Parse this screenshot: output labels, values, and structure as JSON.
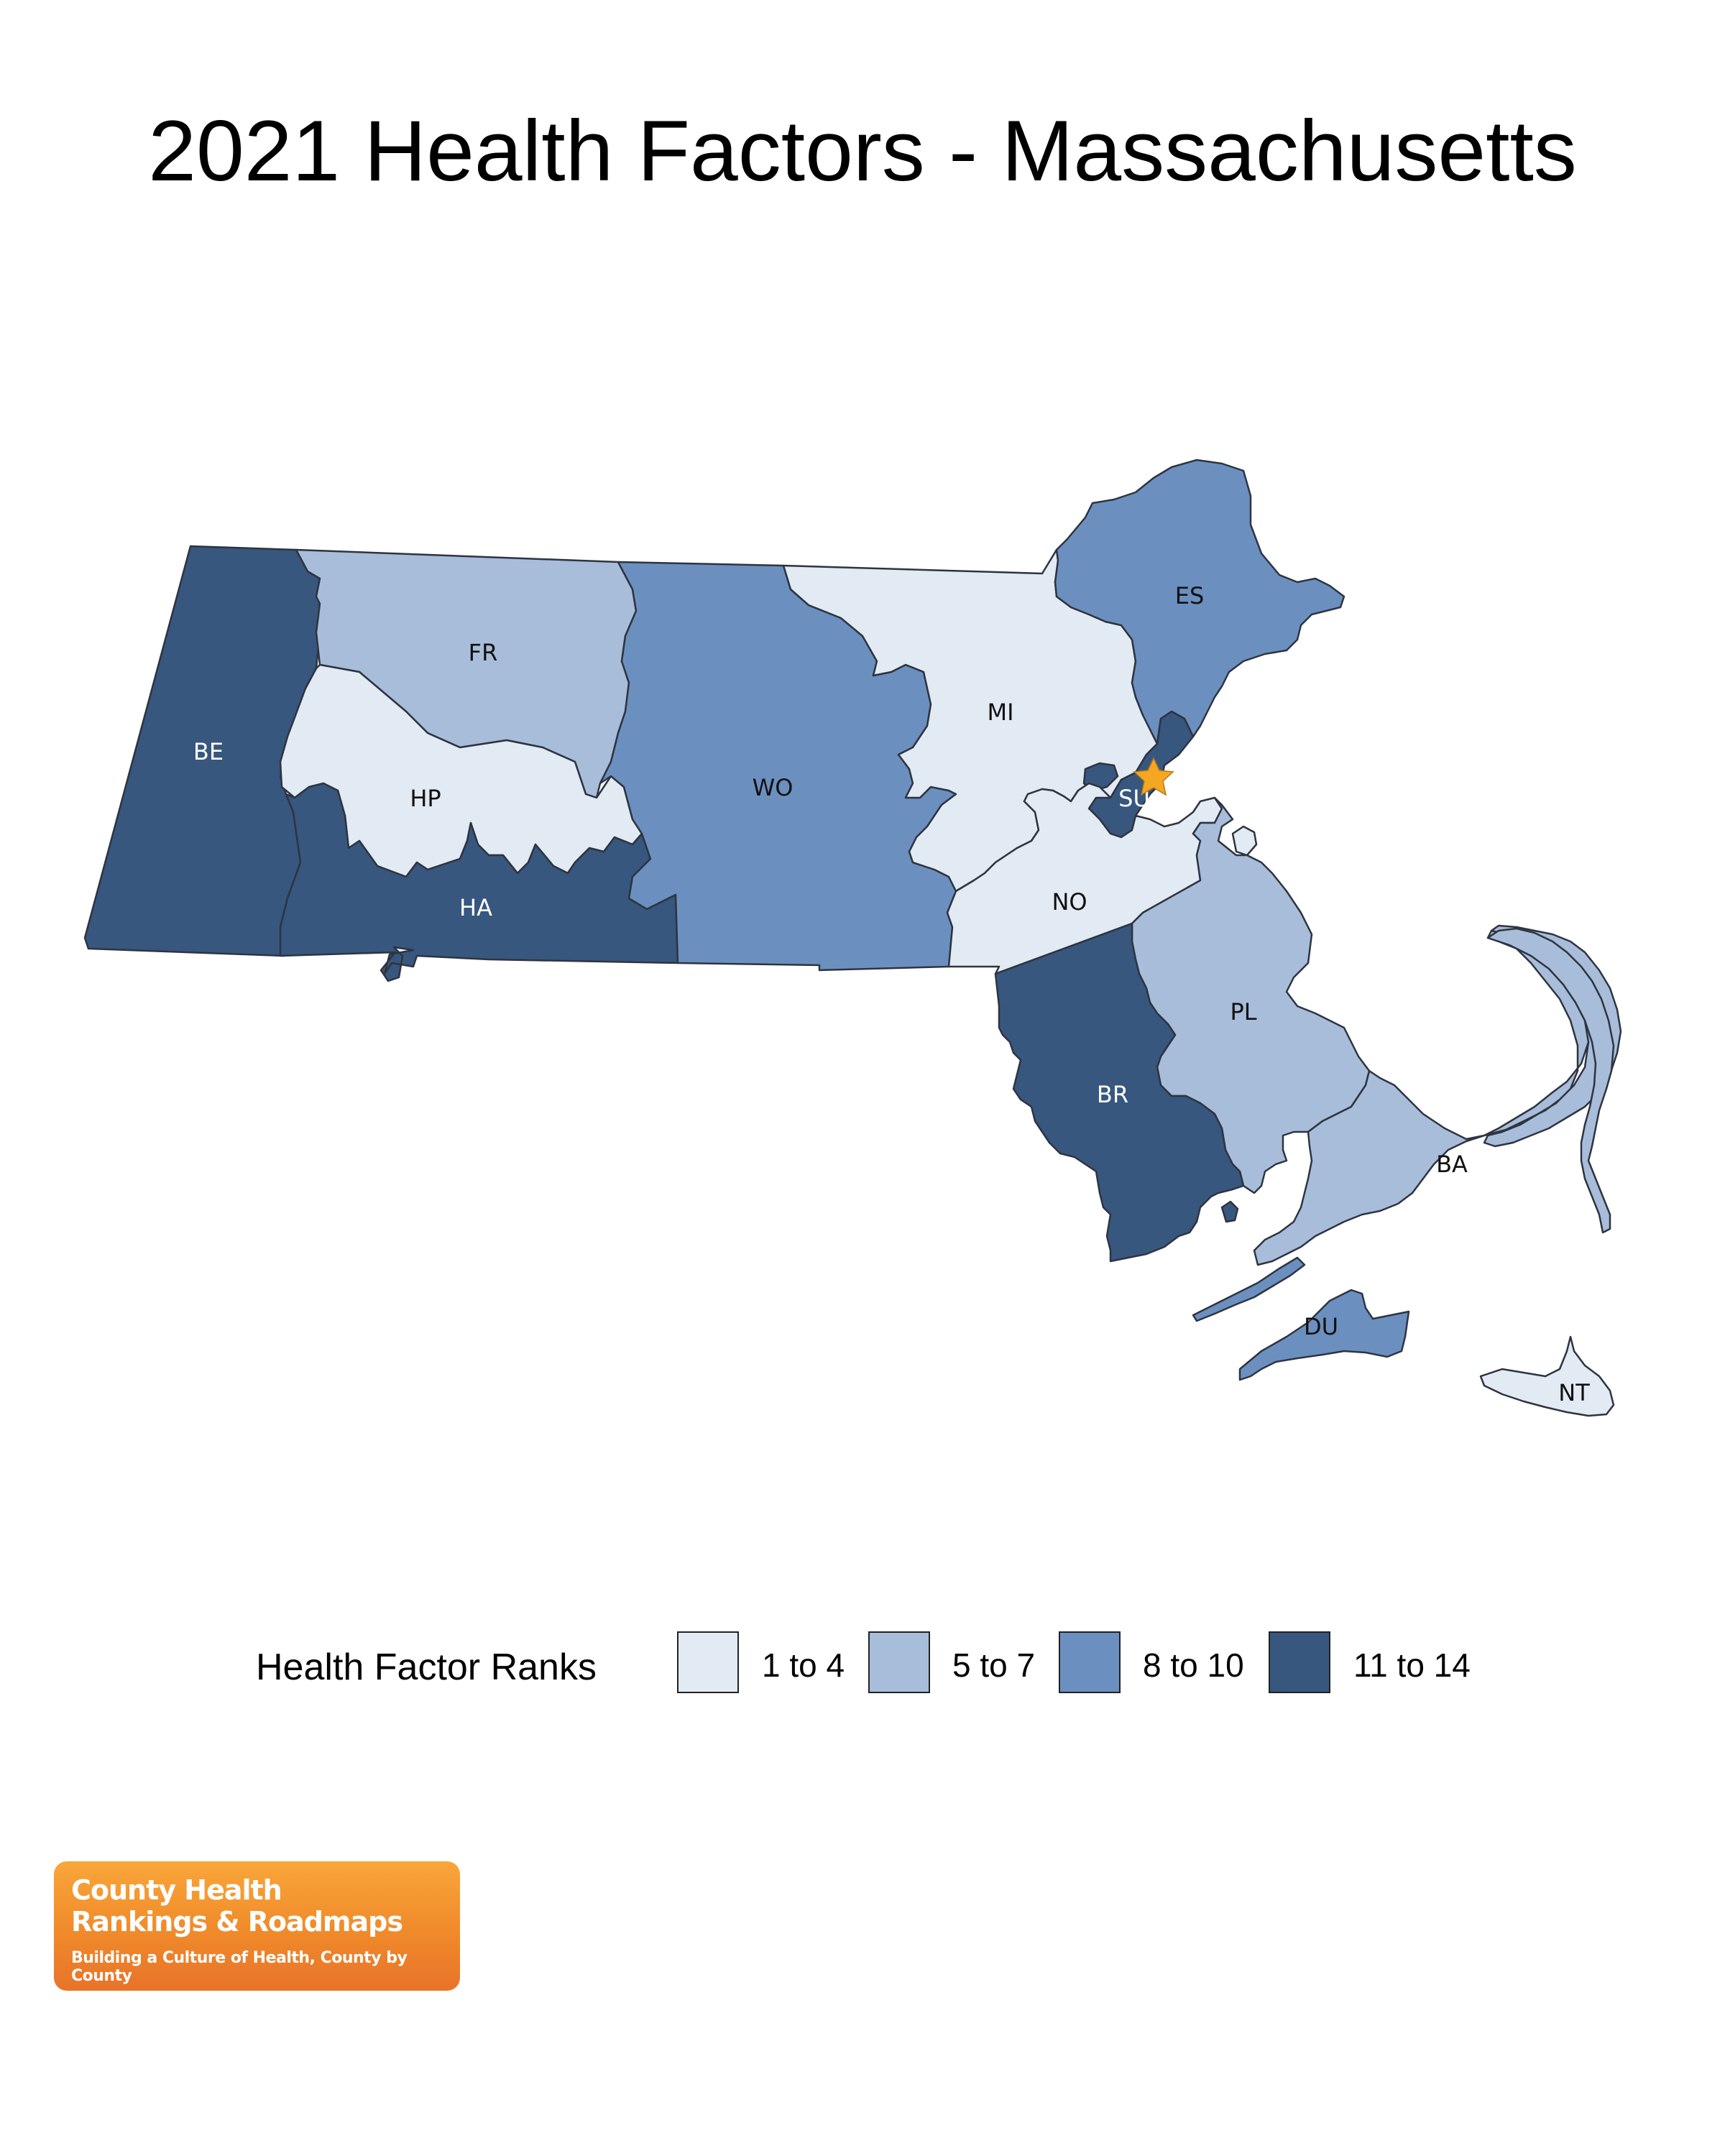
{
  "title": "2021 Health Factors - Massachusetts",
  "colors": {
    "rank_1_4": "#e2eaf4",
    "rank_5_7": "#a8bdda",
    "rank_8_10": "#6b90c0",
    "rank_11_14": "#37577f",
    "star": "#f5a623",
    "border": "#2e3440"
  },
  "counties": [
    {
      "abbr": "BE",
      "rank_class": "11 to 14"
    },
    {
      "abbr": "FR",
      "rank_class": "5 to 7"
    },
    {
      "abbr": "HP",
      "rank_class": "1 to 4"
    },
    {
      "abbr": "HA",
      "rank_class": "11 to 14"
    },
    {
      "abbr": "WO",
      "rank_class": "8 to 10"
    },
    {
      "abbr": "MI",
      "rank_class": "1 to 4"
    },
    {
      "abbr": "ES",
      "rank_class": "8 to 10"
    },
    {
      "abbr": "SU",
      "rank_class": "11 to 14"
    },
    {
      "abbr": "NO",
      "rank_class": "1 to 4"
    },
    {
      "abbr": "PL",
      "rank_class": "5 to 7"
    },
    {
      "abbr": "BR",
      "rank_class": "11 to 14"
    },
    {
      "abbr": "BA",
      "rank_class": "5 to 7"
    },
    {
      "abbr": "DU",
      "rank_class": "8 to 10"
    },
    {
      "abbr": "NT",
      "rank_class": "1 to 4"
    }
  ],
  "legend": {
    "title": "Health Factor Ranks",
    "items": [
      {
        "label": "1 to 4"
      },
      {
        "label": "5 to 7"
      },
      {
        "label": "8 to 10"
      },
      {
        "label": "11 to 14"
      }
    ]
  },
  "logo": {
    "line1": "County Health",
    "line2": "Rankings & Roadmaps",
    "tagline": "Building a Culture of Health, County by County"
  }
}
